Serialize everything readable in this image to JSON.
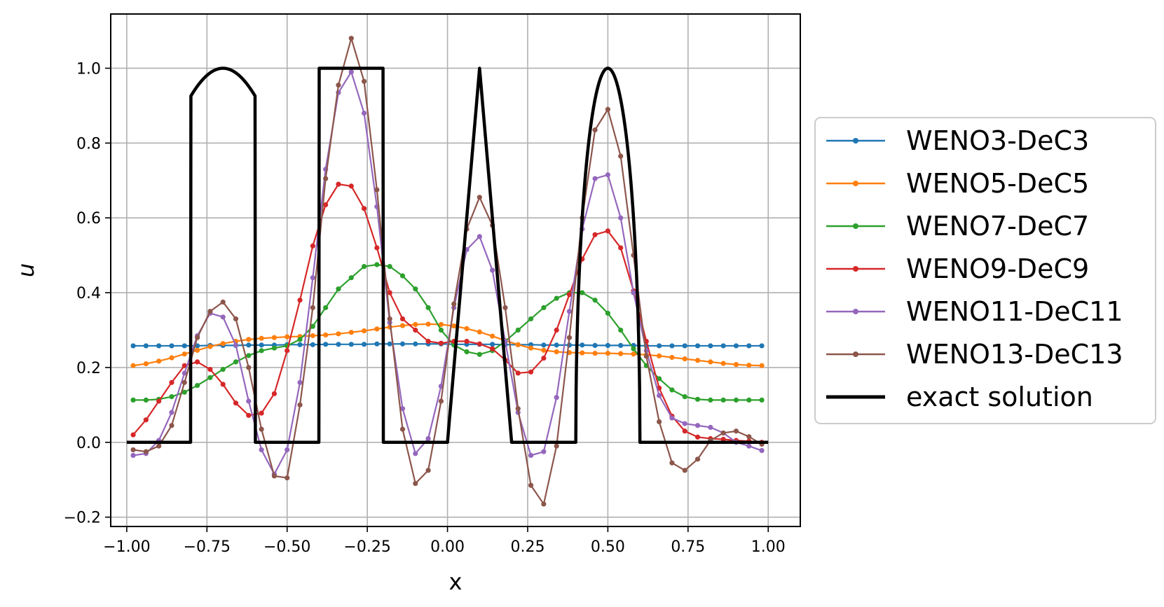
{
  "chart_data": {
    "type": "line",
    "xlabel": "x",
    "ylabel": "u",
    "xlim": [
      -1.05,
      1.1
    ],
    "ylim": [
      -0.225,
      1.145
    ],
    "xticks": [
      -1.0,
      -0.75,
      -0.5,
      -0.25,
      0.0,
      0.25,
      0.5,
      0.75,
      1.0
    ],
    "xtick_labels": [
      "−1.00",
      "−0.75",
      "−0.50",
      "−0.25",
      "0.00",
      "0.25",
      "0.50",
      "0.75",
      "1.00"
    ],
    "yticks": [
      -0.2,
      0.0,
      0.2,
      0.4,
      0.6,
      0.8,
      1.0
    ],
    "ytick_labels": [
      "−0.2",
      "0.0",
      "0.2",
      "0.4",
      "0.6",
      "0.8",
      "1.0"
    ],
    "grid": true,
    "legend_position": "right-outside",
    "x": [
      -0.98,
      -0.94,
      -0.9,
      -0.86,
      -0.82,
      -0.78,
      -0.74,
      -0.7,
      -0.66,
      -0.62,
      -0.58,
      -0.54,
      -0.5,
      -0.46,
      -0.42,
      -0.38,
      -0.34,
      -0.3,
      -0.26,
      -0.22,
      -0.18,
      -0.14,
      -0.1,
      -0.06,
      -0.02,
      0.02,
      0.06,
      0.1,
      0.14,
      0.18,
      0.22,
      0.26,
      0.3,
      0.34,
      0.38,
      0.42,
      0.46,
      0.5,
      0.54,
      0.58,
      0.62,
      0.66,
      0.7,
      0.74,
      0.78,
      0.82,
      0.86,
      0.9,
      0.94,
      0.98
    ],
    "series": [
      {
        "name": "WENO3-DeC3",
        "color": "#1f77b4",
        "values": [
          0.258,
          0.258,
          0.258,
          0.258,
          0.258,
          0.258,
          0.259,
          0.259,
          0.259,
          0.26,
          0.26,
          0.26,
          0.261,
          0.261,
          0.261,
          0.262,
          0.262,
          0.262,
          0.262,
          0.263,
          0.263,
          0.263,
          0.263,
          0.263,
          0.263,
          0.262,
          0.262,
          0.262,
          0.262,
          0.261,
          0.261,
          0.261,
          0.26,
          0.26,
          0.26,
          0.26,
          0.259,
          0.259,
          0.259,
          0.259,
          0.258,
          0.258,
          0.258,
          0.258,
          0.258,
          0.258,
          0.258,
          0.258,
          0.258,
          0.258
        ]
      },
      {
        "name": "WENO5-DeC5",
        "color": "#ff7f0e",
        "values": [
          0.205,
          0.21,
          0.217,
          0.226,
          0.236,
          0.246,
          0.256,
          0.264,
          0.27,
          0.275,
          0.278,
          0.28,
          0.282,
          0.283,
          0.285,
          0.287,
          0.29,
          0.294,
          0.298,
          0.303,
          0.308,
          0.312,
          0.315,
          0.316,
          0.315,
          0.311,
          0.304,
          0.295,
          0.284,
          0.272,
          0.261,
          0.252,
          0.246,
          0.242,
          0.24,
          0.239,
          0.238,
          0.238,
          0.237,
          0.236,
          0.234,
          0.231,
          0.227,
          0.223,
          0.219,
          0.215,
          0.211,
          0.208,
          0.206,
          0.205
        ]
      },
      {
        "name": "WENO7-DeC7",
        "color": "#2ca02c",
        "values": [
          0.113,
          0.113,
          0.115,
          0.122,
          0.134,
          0.152,
          0.173,
          0.195,
          0.215,
          0.232,
          0.245,
          0.252,
          0.258,
          0.275,
          0.31,
          0.36,
          0.41,
          0.44,
          0.47,
          0.475,
          0.47,
          0.445,
          0.41,
          0.36,
          0.3,
          0.26,
          0.242,
          0.235,
          0.245,
          0.27,
          0.3,
          0.33,
          0.36,
          0.385,
          0.4,
          0.4,
          0.38,
          0.345,
          0.3,
          0.25,
          0.205,
          0.17,
          0.14,
          0.122,
          0.115,
          0.113,
          0.113,
          0.113,
          0.113,
          0.113
        ]
      },
      {
        "name": "WENO9-DeC9",
        "color": "#d62728",
        "values": [
          0.02,
          0.06,
          0.11,
          0.16,
          0.205,
          0.215,
          0.195,
          0.155,
          0.105,
          0.072,
          0.078,
          0.13,
          0.245,
          0.38,
          0.525,
          0.635,
          0.69,
          0.685,
          0.625,
          0.52,
          0.4,
          0.33,
          0.3,
          0.27,
          0.265,
          0.27,
          0.27,
          0.263,
          0.25,
          0.22,
          0.185,
          0.188,
          0.225,
          0.3,
          0.395,
          0.49,
          0.555,
          0.565,
          0.52,
          0.405,
          0.27,
          0.145,
          0.07,
          0.03,
          0.014,
          0.01,
          0.008,
          0.005,
          0.003,
          0.0
        ]
      },
      {
        "name": "WENO11-DeC11",
        "color": "#9467bd",
        "values": [
          -0.035,
          -0.03,
          0.005,
          0.08,
          0.185,
          0.285,
          0.345,
          0.335,
          0.26,
          0.11,
          -0.02,
          -0.085,
          -0.02,
          0.16,
          0.44,
          0.73,
          0.935,
          0.99,
          0.88,
          0.63,
          0.32,
          0.09,
          -0.03,
          0.01,
          0.15,
          0.36,
          0.515,
          0.55,
          0.46,
          0.27,
          0.08,
          -0.035,
          -0.025,
          0.12,
          0.35,
          0.57,
          0.705,
          0.715,
          0.6,
          0.4,
          0.245,
          0.125,
          0.065,
          0.05,
          0.045,
          0.04,
          0.025,
          0.0,
          -0.01,
          -0.022
        ]
      },
      {
        "name": "WENO13-DeC13",
        "color": "#8c564b",
        "values": [
          -0.02,
          -0.025,
          -0.01,
          0.045,
          0.16,
          0.28,
          0.35,
          0.375,
          0.33,
          0.2,
          0.035,
          -0.09,
          -0.095,
          0.1,
          0.36,
          0.705,
          0.955,
          1.08,
          0.965,
          0.675,
          0.33,
          0.035,
          -0.11,
          -0.075,
          0.11,
          0.37,
          0.57,
          0.655,
          0.58,
          0.36,
          0.09,
          -0.115,
          -0.165,
          -0.01,
          0.28,
          0.6,
          0.835,
          0.89,
          0.765,
          0.5,
          0.23,
          0.055,
          -0.055,
          -0.075,
          -0.045,
          0.005,
          0.025,
          0.03,
          0.015,
          -0.005
        ]
      },
      {
        "name": "exact solution",
        "color": "#000000",
        "style": "thick",
        "description": "piecewise exact profile sampled densely",
        "x": [],
        "values": []
      }
    ]
  }
}
